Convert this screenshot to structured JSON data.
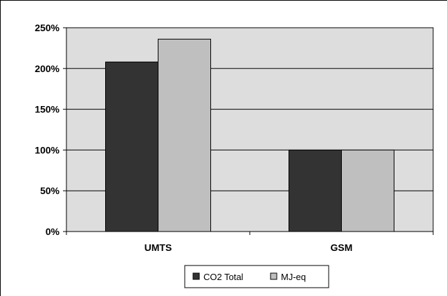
{
  "chart_data": {
    "type": "bar",
    "categories": [
      "UMTS",
      "GSM"
    ],
    "series": [
      {
        "name": "CO2 Total",
        "values": [
          208,
          100
        ],
        "color": "#333333"
      },
      {
        "name": "MJ-eq",
        "values": [
          236,
          100
        ],
        "color": "#bfbfbf"
      }
    ],
    "ylim": [
      0,
      250
    ],
    "yticks": [
      0,
      50,
      100,
      150,
      200,
      250
    ],
    "ytick_labels": [
      "0%",
      "50%",
      "100%",
      "150%",
      "200%",
      "250%"
    ],
    "grid": true,
    "plot_background": "#dddddd",
    "legend_position": "bottom-center"
  }
}
